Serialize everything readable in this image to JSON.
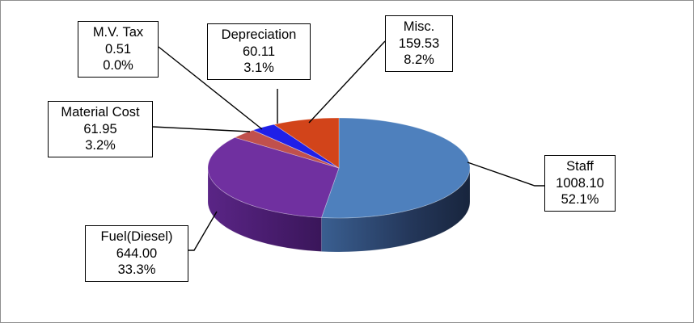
{
  "chart_data": {
    "type": "pie",
    "three_d": true,
    "title": "",
    "legend": "none",
    "slices": [
      {
        "name": "Staff",
        "value": 1008.1,
        "value_label": "1008.10",
        "percent_label": "52.1%",
        "color": "#4e80bd"
      },
      {
        "name": "Fuel(Diesel)",
        "value": 644.0,
        "value_label": "644.00",
        "percent_label": "33.3%",
        "color": "#7030a0"
      },
      {
        "name": "Material Cost",
        "value": 61.95,
        "value_label": "61.95",
        "percent_label": "3.2%",
        "color": "#c0504d"
      },
      {
        "name": "M.V. Tax",
        "value": 0.51,
        "value_label": "0.51",
        "percent_label": "0.0%",
        "color": "#8064a2"
      },
      {
        "name": "Depreciation",
        "value": 60.11,
        "value_label": "60.11",
        "percent_label": "3.1%",
        "color": "#1f1fe8"
      },
      {
        "name": "Misc.",
        "value": 159.53,
        "value_label": "159.53",
        "percent_label": "8.2%",
        "color": "#d2441a"
      }
    ]
  }
}
